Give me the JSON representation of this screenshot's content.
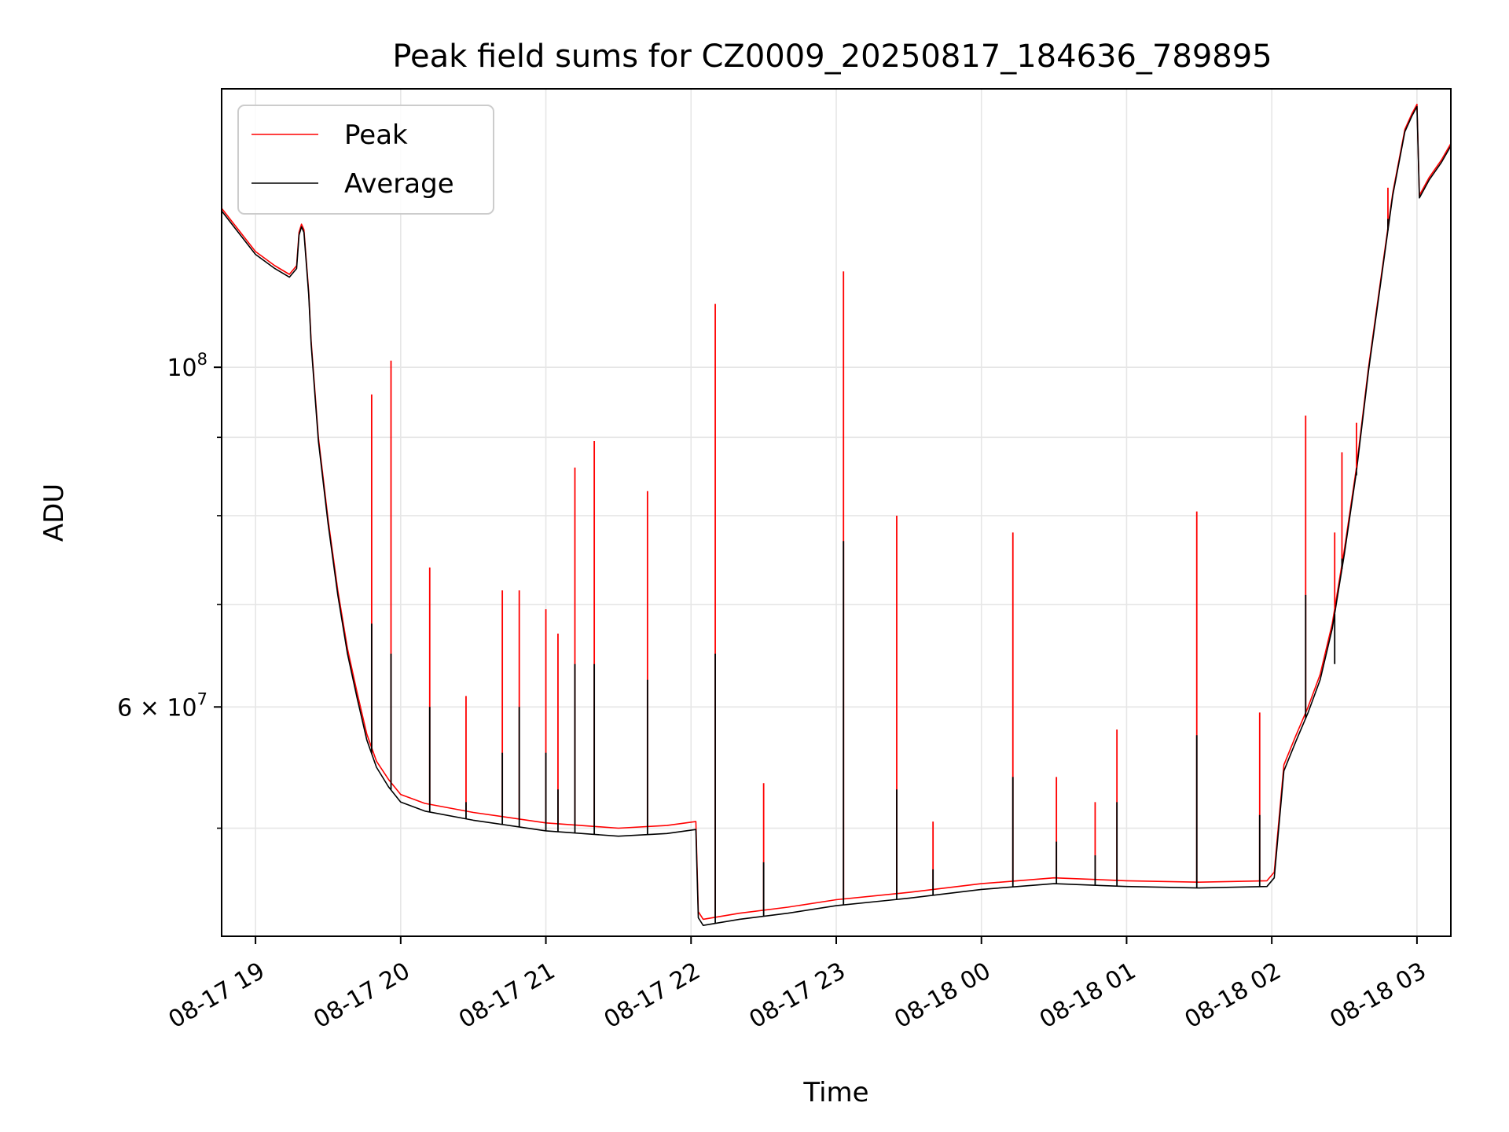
{
  "chart_data": {
    "type": "line",
    "title": "Peak field sums for CZ0009_20250817_184636_789895",
    "xlabel": "Time",
    "ylabel": "ADU",
    "x_ticks": [
      {
        "label": "08-17 19",
        "time": "2025-08-17 19:00"
      },
      {
        "label": "08-17 20",
        "time": "2025-08-17 20:00"
      },
      {
        "label": "08-17 21",
        "time": "2025-08-17 21:00"
      },
      {
        "label": "08-17 22",
        "time": "2025-08-17 22:00"
      },
      {
        "label": "08-17 23",
        "time": "2025-08-17 23:00"
      },
      {
        "label": "08-18 00",
        "time": "2025-08-18 00:00"
      },
      {
        "label": "08-18 01",
        "time": "2025-08-18 01:00"
      },
      {
        "label": "08-18 02",
        "time": "2025-08-18 02:00"
      },
      {
        "label": "08-18 03",
        "time": "2025-08-18 03:00"
      }
    ],
    "y_ticks_major": [
      {
        "value": 60000000,
        "label_base": "6 × 10",
        "label_exp": "7"
      },
      {
        "value": 100000000,
        "label_base": "10",
        "label_exp": "8"
      }
    ],
    "y_ticks_minor": [
      50000000,
      70000000,
      80000000,
      90000000,
      200000000
    ],
    "xlim": [
      "2025-08-17 18:46",
      "2025-08-18 03:14"
    ],
    "ylim": [
      42500000,
      152000000
    ],
    "yscale": "log",
    "grid": true,
    "legend_position": "upper-left",
    "series": [
      {
        "name": "Peak",
        "color": "#ff0000",
        "x": [
          "2025-08-17 18:46",
          "2025-08-17 18:52",
          "2025-08-17 19:00",
          "2025-08-17 19:08",
          "2025-08-17 19:14",
          "2025-08-17 19:17",
          "2025-08-17 19:18",
          "2025-08-17 19:19",
          "2025-08-17 19:20",
          "2025-08-17 19:22",
          "2025-08-17 19:23",
          "2025-08-17 19:26",
          "2025-08-17 19:30",
          "2025-08-17 19:34",
          "2025-08-17 19:38",
          "2025-08-17 19:42",
          "2025-08-17 19:46",
          "2025-08-17 19:50",
          "2025-08-17 19:55",
          "2025-08-17 20:00",
          "2025-08-17 20:10",
          "2025-08-17 20:30",
          "2025-08-17 21:00",
          "2025-08-17 21:30",
          "2025-08-17 21:50",
          "2025-08-17 22:02",
          "2025-08-17 22:03",
          "2025-08-17 22:05",
          "2025-08-17 22:20",
          "2025-08-17 22:40",
          "2025-08-17 23:00",
          "2025-08-17 23:30",
          "2025-08-18 00:00",
          "2025-08-18 00:30",
          "2025-08-18 01:00",
          "2025-08-18 01:30",
          "2025-08-18 01:58",
          "2025-08-18 02:01",
          "2025-08-18 02:05",
          "2025-08-18 02:10",
          "2025-08-18 02:15",
          "2025-08-18 02:20",
          "2025-08-18 02:25",
          "2025-08-18 02:30",
          "2025-08-18 02:35",
          "2025-08-18 02:40",
          "2025-08-18 02:45",
          "2025-08-18 02:50",
          "2025-08-18 02:55",
          "2025-08-18 02:58",
          "2025-08-18 03:00",
          "2025-08-18 03:01",
          "2025-08-18 03:05",
          "2025-08-18 03:10",
          "2025-08-18 03:14"
        ],
        "y": [
          127000000,
          123500000,
          119000000,
          116500000,
          115000000,
          116500000,
          122500000,
          124000000,
          123000000,
          112000000,
          104000000,
          90000000,
          79500000,
          71500000,
          65500000,
          61300000,
          57600000,
          55300000,
          53800000,
          52600000,
          51900000,
          51200000,
          50400000,
          50000000,
          50200000,
          50500000,
          44100000,
          43600000,
          44000000,
          44400000,
          44900000,
          45400000,
          46000000,
          46400000,
          46200000,
          46100000,
          46200000,
          46800000,
          55000000,
          57500000,
          60000000,
          63000000,
          68000000,
          76000000,
          86000000,
          100000000,
          114000000,
          130000000,
          143000000,
          146500000,
          148500000,
          129500000,
          133000000,
          136500000,
          140000000
        ]
      },
      {
        "name": "Average",
        "color": "#000000",
        "x": [
          "2025-08-17 18:46",
          "2025-08-17 18:52",
          "2025-08-17 19:00",
          "2025-08-17 19:08",
          "2025-08-17 19:14",
          "2025-08-17 19:17",
          "2025-08-17 19:18",
          "2025-08-17 19:19",
          "2025-08-17 19:20",
          "2025-08-17 19:22",
          "2025-08-17 19:23",
          "2025-08-17 19:26",
          "2025-08-17 19:30",
          "2025-08-17 19:34",
          "2025-08-17 19:38",
          "2025-08-17 19:42",
          "2025-08-17 19:46",
          "2025-08-17 19:50",
          "2025-08-17 19:55",
          "2025-08-17 20:00",
          "2025-08-17 20:10",
          "2025-08-17 20:30",
          "2025-08-17 21:00",
          "2025-08-17 21:30",
          "2025-08-17 21:50",
          "2025-08-17 22:02",
          "2025-08-17 22:03",
          "2025-08-17 22:05",
          "2025-08-17 22:20",
          "2025-08-17 22:40",
          "2025-08-17 23:00",
          "2025-08-17 23:30",
          "2025-08-18 00:00",
          "2025-08-18 00:30",
          "2025-08-18 01:00",
          "2025-08-18 01:30",
          "2025-08-18 01:58",
          "2025-08-18 02:01",
          "2025-08-18 02:05",
          "2025-08-18 02:10",
          "2025-08-18 02:15",
          "2025-08-18 02:20",
          "2025-08-18 02:25",
          "2025-08-18 02:30",
          "2025-08-18 02:35",
          "2025-08-18 02:40",
          "2025-08-18 02:45",
          "2025-08-18 02:50",
          "2025-08-18 02:55",
          "2025-08-18 02:58",
          "2025-08-18 03:00",
          "2025-08-18 03:01",
          "2025-08-18 03:05",
          "2025-08-18 03:10",
          "2025-08-18 03:14"
        ],
        "y": [
          126500000,
          123000000,
          118500000,
          116000000,
          114500000,
          116000000,
          122000000,
          123500000,
          122500000,
          111500000,
          103500000,
          89500000,
          79000000,
          71000000,
          65000000,
          60800000,
          57100000,
          54800000,
          53200000,
          52000000,
          51300000,
          50600000,
          49800000,
          49400000,
          49600000,
          49900000,
          43700000,
          43200000,
          43600000,
          44000000,
          44500000,
          45000000,
          45600000,
          46000000,
          45800000,
          45700000,
          45800000,
          46400000,
          54500000,
          57000000,
          59500000,
          62500000,
          67500000,
          75500000,
          85500000,
          99500000,
          113500000,
          129500000,
          142500000,
          146000000,
          148000000,
          129000000,
          132500000,
          136000000,
          139500000
        ]
      }
    ],
    "spikes": [
      {
        "time": "2025-08-17 19:48",
        "peak": 96000000,
        "average": 68000000
      },
      {
        "time": "2025-08-17 19:56",
        "peak": 101000000,
        "average": 65000000
      },
      {
        "time": "2025-08-17 20:12",
        "peak": 74000000,
        "average": 60000000
      },
      {
        "time": "2025-08-17 20:27",
        "peak": 61000000,
        "average": 52000000
      },
      {
        "time": "2025-08-17 20:42",
        "peak": 71500000,
        "average": 56000000
      },
      {
        "time": "2025-08-17 20:49",
        "peak": 71500000,
        "average": 60000000
      },
      {
        "time": "2025-08-17 21:00",
        "peak": 69500000,
        "average": 56000000
      },
      {
        "time": "2025-08-17 21:05",
        "peak": 67000000,
        "average": 53000000
      },
      {
        "time": "2025-08-17 21:12",
        "peak": 86000000,
        "average": 64000000
      },
      {
        "time": "2025-08-17 21:20",
        "peak": 89500000,
        "average": 64000000
      },
      {
        "time": "2025-08-17 21:42",
        "peak": 83000000,
        "average": 62500000
      },
      {
        "time": "2025-08-17 22:10",
        "peak": 110000000,
        "average": 65000000
      },
      {
        "time": "2025-08-17 22:30",
        "peak": 53500000,
        "average": 47500000
      },
      {
        "time": "2025-08-17 23:03",
        "peak": 115500000,
        "average": 77000000
      },
      {
        "time": "2025-08-17 23:25",
        "peak": 80000000,
        "average": 53000000
      },
      {
        "time": "2025-08-17 23:40",
        "peak": 50500000,
        "average": 47000000
      },
      {
        "time": "2025-08-18 00:13",
        "peak": 78000000,
        "average": 54000000
      },
      {
        "time": "2025-08-18 00:31",
        "peak": 54000000,
        "average": 49000000
      },
      {
        "time": "2025-08-18 00:47",
        "peak": 52000000,
        "average": 48000000
      },
      {
        "time": "2025-08-18 00:56",
        "peak": 58000000,
        "average": 52000000
      },
      {
        "time": "2025-08-18 01:29",
        "peak": 80500000,
        "average": 57500000
      },
      {
        "time": "2025-08-18 01:55",
        "peak": 59500000,
        "average": 51000000
      },
      {
        "time": "2025-08-18 02:14",
        "peak": 93000000,
        "average": 71000000
      },
      {
        "time": "2025-08-18 02:26",
        "peak": 78000000,
        "average": 64000000
      },
      {
        "time": "2025-08-18 02:29",
        "peak": 88000000,
        "average": 75000000
      },
      {
        "time": "2025-08-18 02:35",
        "peak": 92000000,
        "average": 85000000
      },
      {
        "time": "2025-08-18 02:48",
        "peak": 131000000,
        "average": 125000000
      }
    ]
  }
}
